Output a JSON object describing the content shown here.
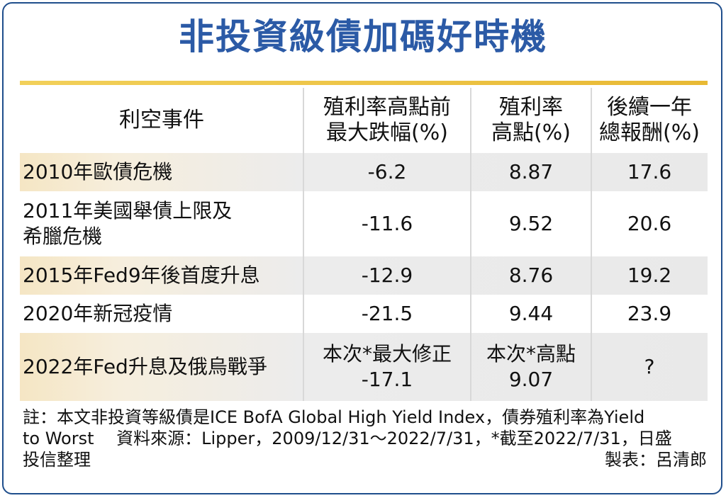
{
  "title": "非投資級債加碼好時機",
  "colors": {
    "title": "#2b5aa6",
    "rule": "#e8b934",
    "shade": "#ececec",
    "frame": "#1f4e8c"
  },
  "chart_data": {
    "type": "table",
    "title": "非投資級債加碼好時機",
    "columns": [
      "利空事件",
      "殖利率高點前最大跌幅(%)",
      "殖利率高點(%)",
      "後續一年總報酬(%)"
    ],
    "header": {
      "c0": "利空事件",
      "c1_l1": "殖利率高點前",
      "c1_l2": "最大跌幅(%)",
      "c2_l1": "殖利率",
      "c2_l2": "高點(%)",
      "c3_l1": "後續一年",
      "c3_l2": "總報酬(%)"
    },
    "rows": [
      {
        "event": "2010年歐債危機",
        "drawdown": "-6.2",
        "peak_yield": "8.87",
        "next_year_return": "17.6"
      },
      {
        "event_l1": "2011年美國舉債上限及",
        "event_l2": "希臘危機",
        "drawdown": "-11.6",
        "peak_yield": "9.52",
        "next_year_return": "20.6"
      },
      {
        "event": "2015年Fed9年後首度升息",
        "drawdown": "-12.9",
        "peak_yield": "8.76",
        "next_year_return": "19.2"
      },
      {
        "event": "2020年新冠疫情",
        "drawdown": "-21.5",
        "peak_yield": "9.44",
        "next_year_return": "23.9"
      },
      {
        "event": "2022年Fed升息及俄烏戰爭",
        "drawdown_l1": "本次*最大修正",
        "drawdown_l2": "-17.1",
        "peak_yield_l1": "本次*高點",
        "peak_yield_l2": "9.07",
        "next_year_return": "?"
      }
    ]
  },
  "note": {
    "line1": "註：本文非投資等級債是ICE BofA Global High Yield Index，債券殖利率為Yield",
    "line2": "to Worst　 資料來源：Lipper，2009/12/31～2022/7/31，*截至2022/7/31，日盛",
    "line3": "投信整理",
    "maker": "製表：呂清郎"
  }
}
